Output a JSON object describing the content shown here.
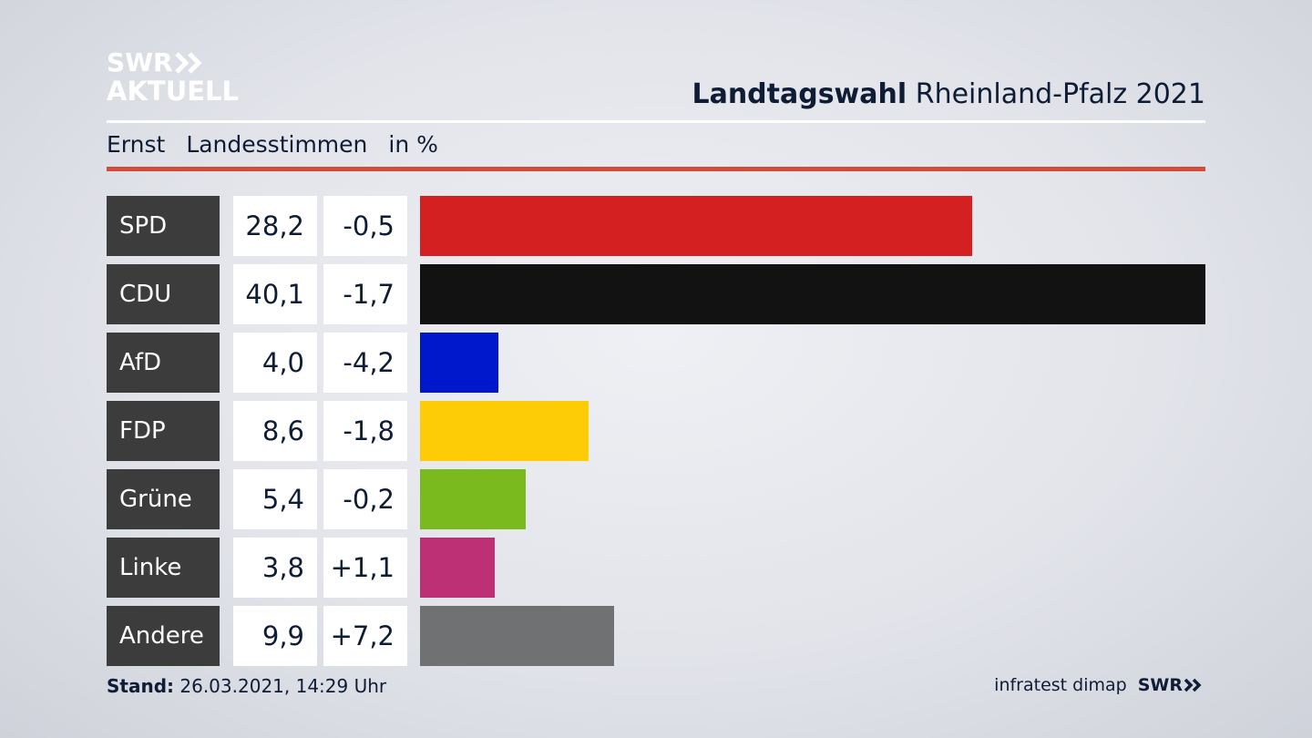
{
  "logo": {
    "line1": "SWR",
    "line2": "AKTUELL"
  },
  "header": {
    "title_bold": "Landtagswahl",
    "title_rest": "Rheinland-Pfalz 2021"
  },
  "subtitle": {
    "candidate": "Ernst",
    "measure": "Landesstimmen",
    "unit": "in %"
  },
  "footer": {
    "stand_label": "Stand:",
    "stand_value": "26.03.2021, 14:29 Uhr",
    "source": "infratest dimap",
    "brand": "SWR"
  },
  "colors": {
    "SPD": "#d42020",
    "CDU": "#121212",
    "AfD": "#0018cc",
    "FDP": "#fecc06",
    "Grüne": "#7aba1e",
    "Linke": "#be3075",
    "Andere": "#707172"
  },
  "chart_data": {
    "type": "bar",
    "title": "Landtagswahl Rheinland-Pfalz 2021",
    "orientation": "horizontal",
    "categories": [
      "SPD",
      "CDU",
      "AfD",
      "FDP",
      "Grüne",
      "Linke",
      "Andere"
    ],
    "values": [
      28.2,
      40.1,
      4.0,
      8.6,
      5.4,
      3.8,
      9.9
    ],
    "value_labels": [
      "28,2",
      "40,1",
      "4,0",
      "8,6",
      "5,4",
      "3,8",
      "9,9"
    ],
    "diff_labels": [
      "-0,5",
      "-1,7",
      "-4,2",
      "-1,8",
      "-0,2",
      "+1,1",
      "+7,2"
    ],
    "xlim": [
      0,
      40.1
    ]
  }
}
